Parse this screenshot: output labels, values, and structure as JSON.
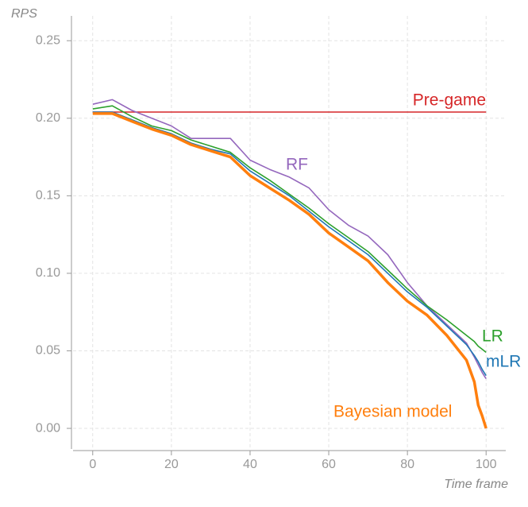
{
  "chart_data": {
    "type": "line",
    "y_label": "RPS",
    "x_label": "Time frame",
    "x": [
      0,
      5,
      10,
      15,
      20,
      25,
      30,
      35,
      40,
      45,
      50,
      55,
      60,
      65,
      70,
      75,
      80,
      85,
      90,
      95,
      97,
      98,
      99,
      100
    ],
    "series": [
      {
        "name": "Pre-game",
        "color": "#d62728",
        "values": [
          0.204,
          0.204,
          0.204,
          0.204,
          0.204,
          0.204,
          0.204,
          0.204,
          0.204,
          0.204,
          0.204,
          0.204,
          0.204,
          0.204,
          0.204,
          0.204,
          0.204,
          0.204,
          0.204,
          0.204,
          0.204,
          0.204,
          0.204,
          0.204
        ]
      },
      {
        "name": "RF",
        "color": "#9467bd",
        "values": [
          0.209,
          0.212,
          0.205,
          0.2,
          0.195,
          0.187,
          0.187,
          0.187,
          0.173,
          0.167,
          0.162,
          0.155,
          0.141,
          0.131,
          0.124,
          0.112,
          0.094,
          0.079,
          0.067,
          0.055,
          0.046,
          0.041,
          0.036,
          0.032
        ]
      },
      {
        "name": "LR",
        "color": "#2ca02c",
        "values": [
          0.206,
          0.208,
          0.201,
          0.195,
          0.192,
          0.186,
          0.182,
          0.178,
          0.168,
          0.16,
          0.151,
          0.142,
          0.132,
          0.123,
          0.114,
          0.102,
          0.09,
          0.079,
          0.07,
          0.06,
          0.056,
          0.053,
          0.051,
          0.049
        ]
      },
      {
        "name": "mLR",
        "color": "#1f77b4",
        "values": [
          0.204,
          0.204,
          0.199,
          0.194,
          0.19,
          0.184,
          0.18,
          0.177,
          0.166,
          0.158,
          0.15,
          0.14,
          0.13,
          0.121,
          0.112,
          0.1,
          0.088,
          0.078,
          0.066,
          0.054,
          0.047,
          0.043,
          0.038,
          0.034
        ]
      },
      {
        "name": "Bayesian model",
        "color": "#ff7f0e",
        "values": [
          0.203,
          0.203,
          0.198,
          0.193,
          0.189,
          0.183,
          0.179,
          0.175,
          0.163,
          0.155,
          0.147,
          0.138,
          0.126,
          0.117,
          0.108,
          0.094,
          0.082,
          0.073,
          0.06,
          0.044,
          0.03,
          0.015,
          0.008,
          0.0
        ]
      }
    ],
    "xlim": [
      -5,
      105
    ],
    "ylim": [
      -0.0133,
      0.266
    ],
    "xticks": [
      0,
      20,
      40,
      60,
      80,
      100
    ],
    "yticks": [
      {
        "value": 0,
        "label": "0.00"
      },
      0.05,
      {
        "value": 0.1,
        "label": "0.10"
      },
      0.15,
      {
        "value": 0.2,
        "label": "0.20"
      },
      0.25
    ],
    "grid": true
  }
}
